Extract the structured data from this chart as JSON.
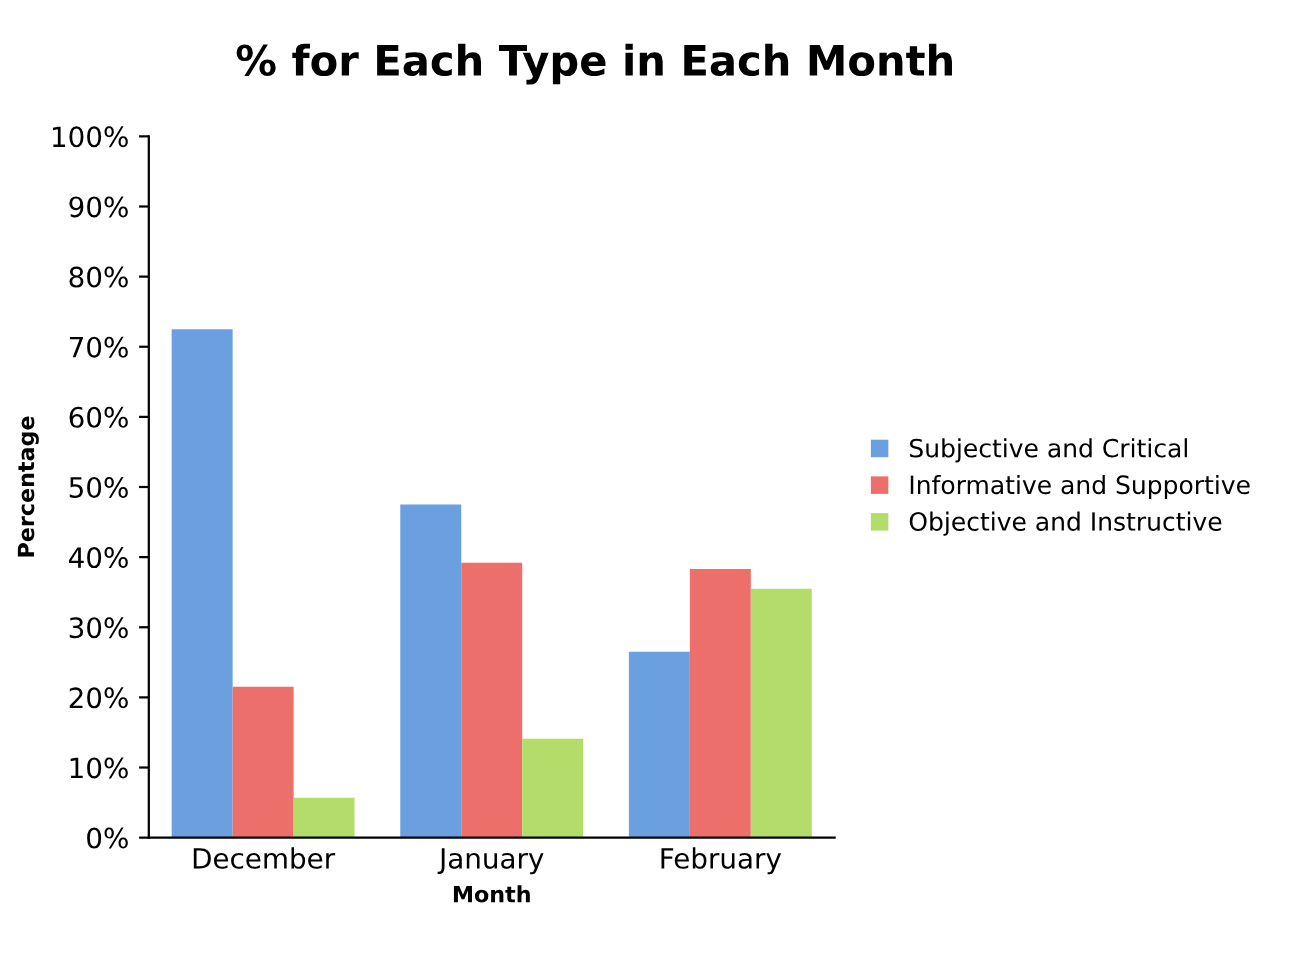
{
  "chart_data": {
    "type": "bar",
    "title": "% for Each Type in Each Month",
    "xlabel": "Month",
    "ylabel": "Percentage",
    "categories": [
      "December",
      "January",
      "February"
    ],
    "series": [
      {
        "name": "Subjective and Critical",
        "color": "#6a9fe0",
        "values": [
          72.5,
          47.5,
          26.5
        ]
      },
      {
        "name": "Informative and Supportive",
        "color": "#ec6f6c",
        "values": [
          21.5,
          39.2,
          38.3
        ]
      },
      {
        "name": "Objective and Instructive",
        "color": "#b3dc6a",
        "values": [
          5.7,
          14.1,
          35.5
        ]
      }
    ],
    "ylim": [
      0,
      100
    ],
    "yticks": [
      {
        "value": 0,
        "label": "0%"
      },
      {
        "value": 10,
        "label": "10%"
      },
      {
        "value": 20,
        "label": "20%"
      },
      {
        "value": 30,
        "label": "30%"
      },
      {
        "value": 40,
        "label": "40%"
      },
      {
        "value": 50,
        "label": "50%"
      },
      {
        "value": 60,
        "label": "60%"
      },
      {
        "value": 70,
        "label": "70%"
      },
      {
        "value": 80,
        "label": "80%"
      },
      {
        "value": 90,
        "label": "90%"
      },
      {
        "value": 100,
        "label": "100%"
      }
    ],
    "grid": false,
    "legend": "right"
  }
}
